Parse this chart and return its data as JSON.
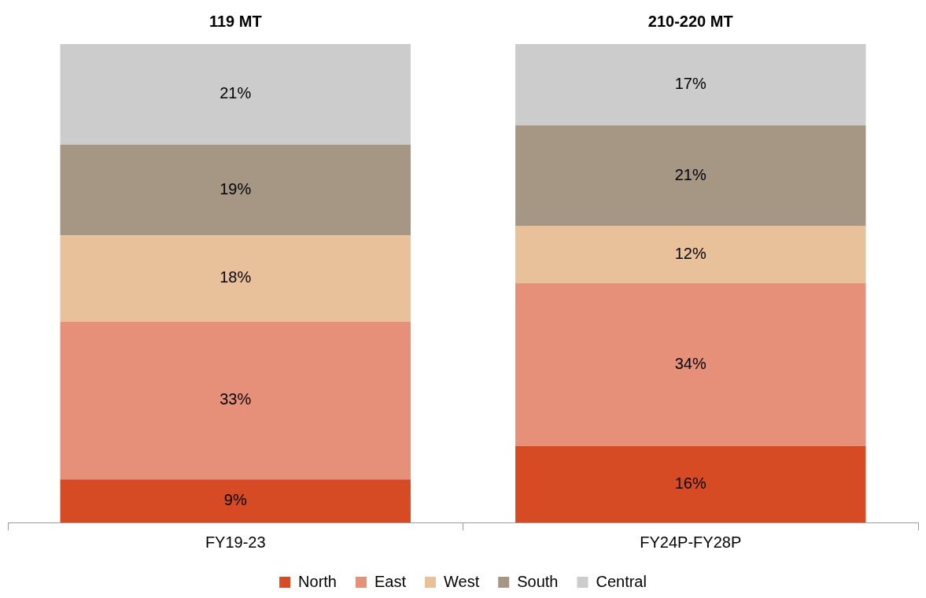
{
  "chart_data": {
    "type": "bar",
    "stacked": true,
    "categories": [
      "FY19-23",
      "FY24P-FY28P"
    ],
    "series": [
      {
        "name": "North",
        "color": "#d64a24",
        "values": [
          9,
          16
        ],
        "value_labels": [
          "9%",
          "16%"
        ]
      },
      {
        "name": "East",
        "color": "#e6907a",
        "values": [
          33,
          34
        ],
        "value_labels": [
          "33%",
          "34%"
        ]
      },
      {
        "name": "West",
        "color": "#e8c19a",
        "values": [
          18,
          12
        ],
        "value_labels": [
          "18%",
          "12%"
        ]
      },
      {
        "name": "South",
        "color": "#a69785",
        "values": [
          19,
          21
        ],
        "value_labels": [
          "19%",
          "21%"
        ]
      },
      {
        "name": "Central",
        "color": "#cccccc",
        "values": [
          21,
          17
        ],
        "value_labels": [
          "21%",
          "17%"
        ]
      }
    ],
    "annotations": [
      {
        "text": "119 MT",
        "x": "FY19-23",
        "y": 100
      },
      {
        "text": "210-220 MT",
        "x": "FY24P-FY28P",
        "y": 100
      }
    ],
    "tick_labels": "x",
    "legend": "bottom",
    "grid": false
  }
}
